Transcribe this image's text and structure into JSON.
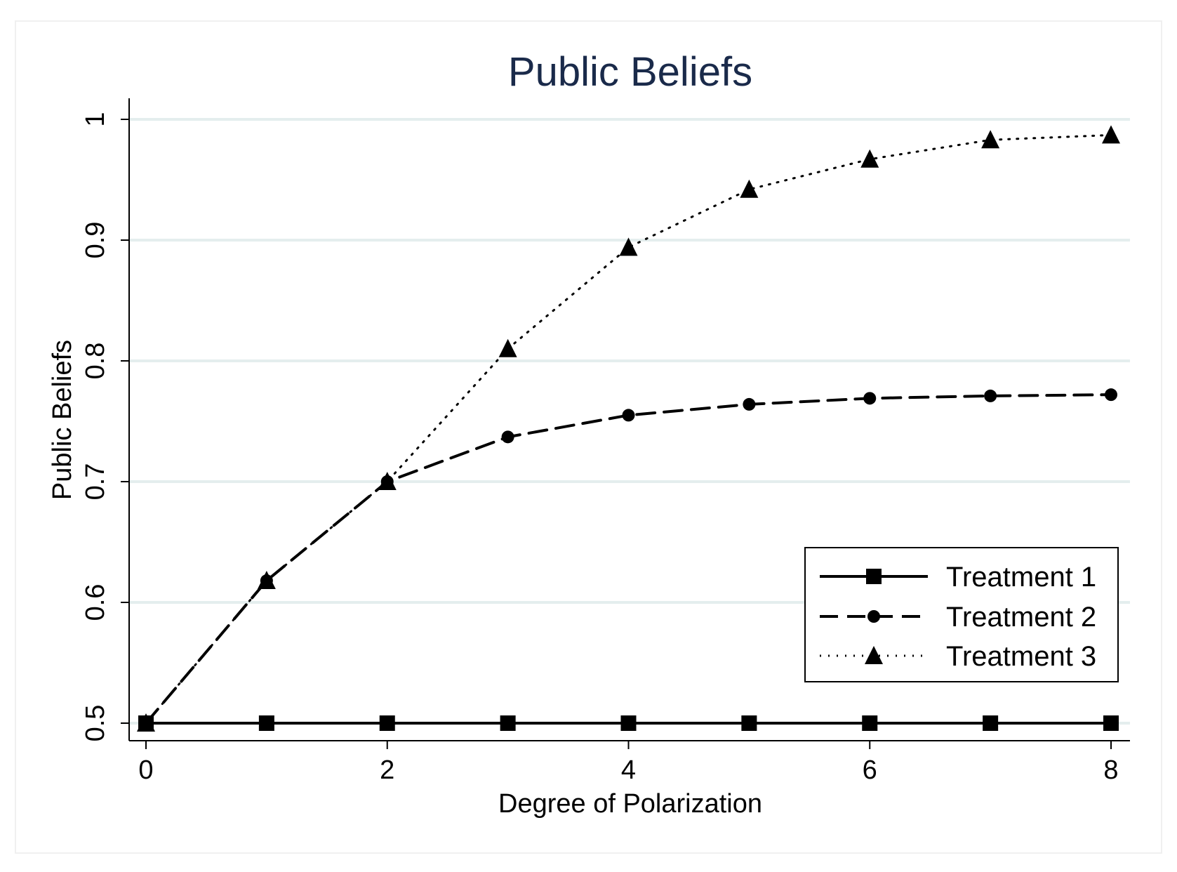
{
  "chart_data": {
    "type": "line",
    "title": "Public Beliefs",
    "xlabel": "Degree of Polarization",
    "ylabel": "Public Beliefs",
    "xlim": [
      0,
      8
    ],
    "ylim": [
      0.5,
      1.0
    ],
    "xticks": [
      0,
      2,
      4,
      6,
      8
    ],
    "xtick_labels": [
      "0",
      "2",
      "4",
      "6",
      "8"
    ],
    "yticks": [
      0.5,
      0.6,
      0.7,
      0.8,
      0.9,
      1.0
    ],
    "ytick_labels": [
      "0.5",
      "0.6",
      "0.7",
      "0.8",
      "0.9",
      "1"
    ],
    "grid": "horizontal",
    "legend_position": "bottom-right",
    "x": [
      0,
      1,
      2,
      3,
      4,
      5,
      6,
      7,
      8
    ],
    "series": [
      {
        "name": "Treatment 1",
        "line_style": "solid",
        "marker": "square",
        "values": [
          0.5,
          0.5,
          0.5,
          0.5,
          0.5,
          0.5,
          0.5,
          0.5,
          0.5
        ]
      },
      {
        "name": "Treatment 2",
        "line_style": "dashed",
        "marker": "circle",
        "values": [
          0.5,
          0.618,
          0.7,
          0.737,
          0.755,
          0.764,
          0.769,
          0.771,
          0.772
        ]
      },
      {
        "name": "Treatment 3",
        "line_style": "dotted",
        "marker": "triangle",
        "values": [
          0.5,
          0.618,
          0.7,
          0.81,
          0.894,
          0.942,
          0.967,
          0.983,
          0.987
        ]
      }
    ]
  },
  "colors": {
    "title": "#1a2a4a",
    "series": "#000000",
    "grid": "#e4eeee",
    "axis": "#000000"
  }
}
